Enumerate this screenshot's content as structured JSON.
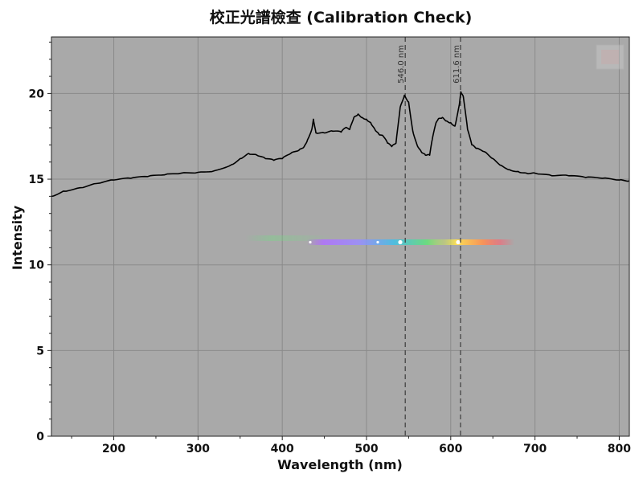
{
  "chart_data": {
    "type": "line",
    "title": "校正光譜檢查 (Calibration Check)",
    "xlabel": "Wavelength (nm)",
    "ylabel": "Intensity",
    "xlim": [
      126,
      812
    ],
    "ylim": [
      0,
      23.3
    ],
    "x_ticks": [
      200,
      300,
      400,
      500,
      600,
      700,
      800
    ],
    "y_ticks": [
      0,
      5,
      10,
      15,
      20
    ],
    "x_tick_labels": [
      "200",
      "300",
      "400",
      "500",
      "600",
      "700",
      "800"
    ],
    "y_tick_labels": [
      "0",
      "5",
      "10",
      "15",
      "20"
    ],
    "grid": true,
    "colors": {
      "background": "#a9a9a9",
      "line": "#000000",
      "grid": "#8a8a8a",
      "marker": "#444444"
    },
    "reference_lines": [
      {
        "x": 546.0,
        "label": "546.0 nm"
      },
      {
        "x": 611.6,
        "label": "611.6 nm"
      }
    ],
    "series": [
      {
        "x": [
          126,
          140,
          160,
          180,
          200,
          220,
          240,
          260,
          280,
          300,
          320,
          340,
          350,
          360,
          370,
          380,
          390,
          400,
          410,
          420,
          426,
          430,
          435,
          437,
          440,
          450,
          460,
          470,
          475,
          480,
          485,
          490,
          495,
          500,
          505,
          510,
          515,
          520,
          525,
          530,
          535,
          540,
          545,
          550,
          555,
          560,
          565,
          570,
          575,
          578,
          582,
          585,
          590,
          595,
          600,
          605,
          610,
          612,
          615,
          620,
          625,
          630,
          640,
          650,
          660,
          670,
          680,
          690,
          700,
          720,
          740,
          760,
          780,
          800,
          812
        ],
        "y": [
          14.0,
          14.3,
          14.5,
          14.75,
          14.95,
          15.05,
          15.15,
          15.25,
          15.35,
          15.4,
          15.5,
          15.85,
          16.2,
          16.5,
          16.4,
          16.2,
          16.1,
          16.2,
          16.5,
          16.7,
          16.9,
          17.3,
          17.9,
          18.5,
          17.7,
          17.7,
          17.8,
          17.75,
          18.0,
          17.9,
          18.6,
          18.8,
          18.6,
          18.5,
          18.3,
          17.9,
          17.6,
          17.5,
          17.1,
          16.9,
          17.1,
          19.2,
          19.9,
          19.5,
          17.8,
          17.0,
          16.6,
          16.4,
          16.4,
          17.3,
          18.2,
          18.5,
          18.6,
          18.4,
          18.3,
          18.1,
          19.3,
          20.1,
          19.8,
          17.9,
          17.0,
          16.8,
          16.6,
          16.2,
          15.8,
          15.55,
          15.45,
          15.35,
          15.35,
          15.2,
          15.2,
          15.1,
          15.05,
          14.95,
          14.9
        ]
      }
    ]
  }
}
